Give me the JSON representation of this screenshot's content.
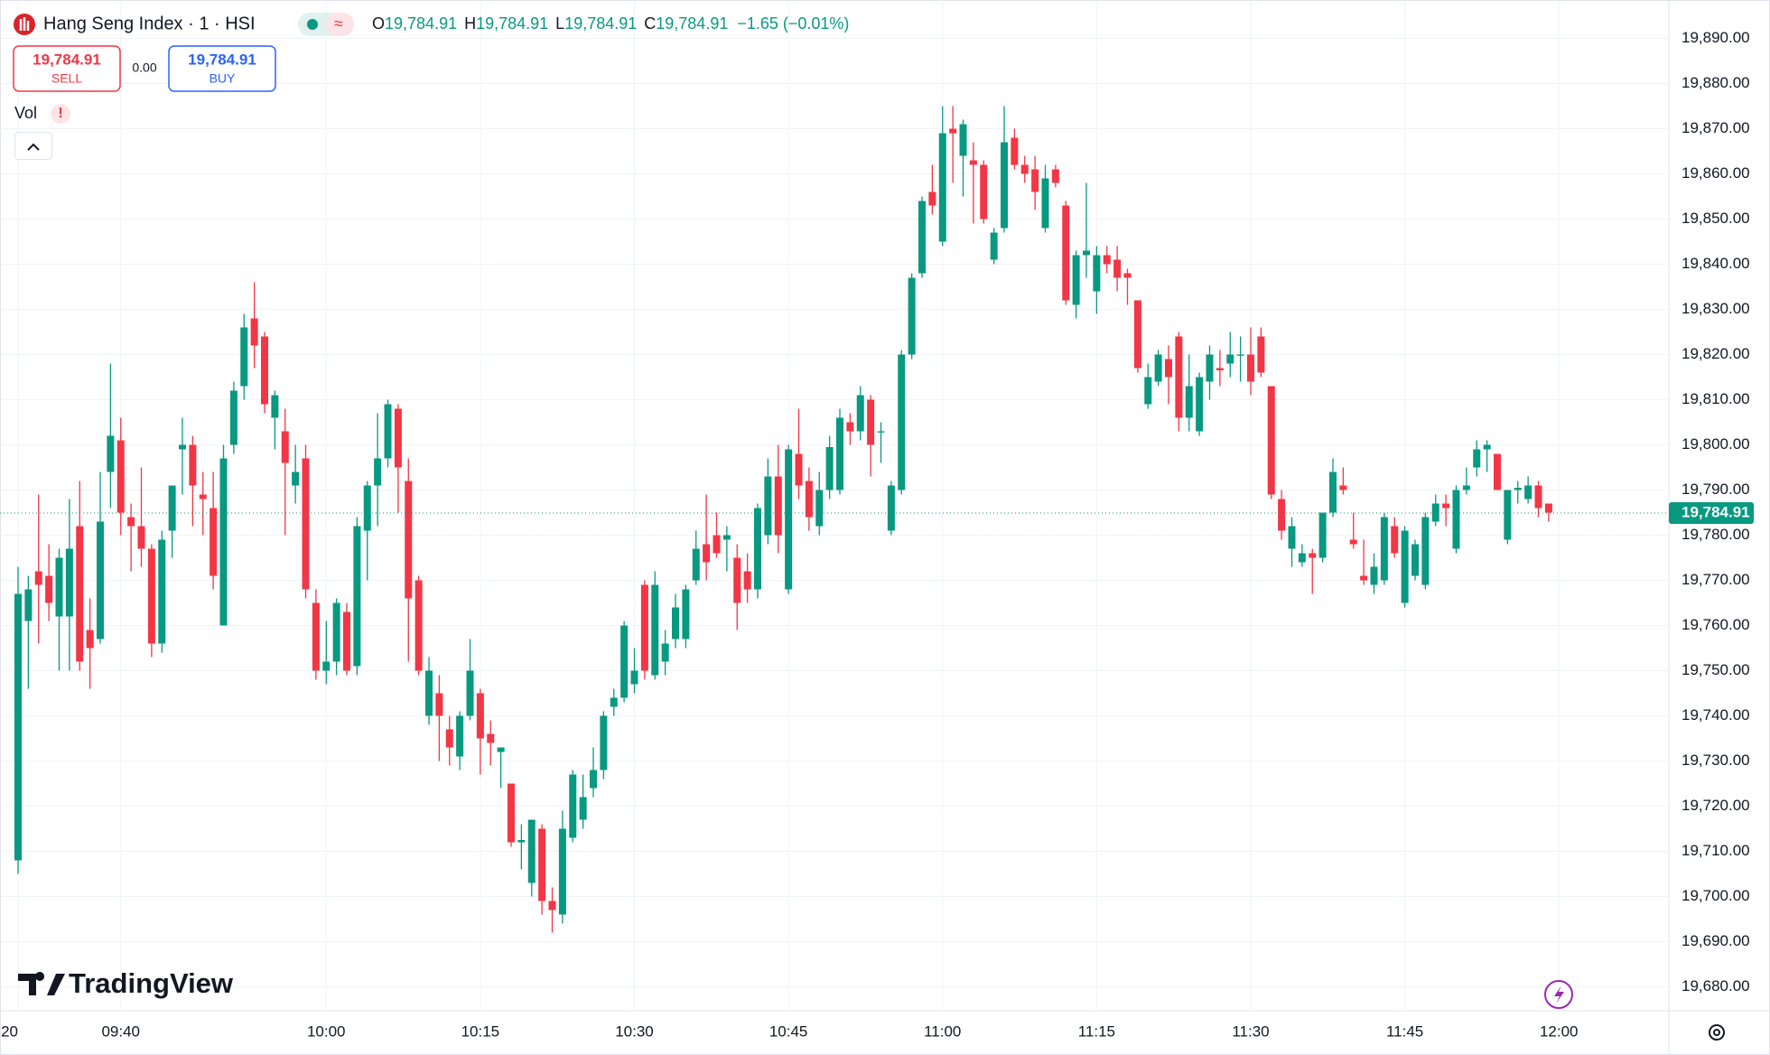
{
  "header": {
    "symbol": "Hang Seng Index · 1 · HSI",
    "ohlc": [
      {
        "key": "O",
        "value": "19,784.91"
      },
      {
        "key": "H",
        "value": "19,784.91"
      },
      {
        "key": "L",
        "value": "19,784.91"
      },
      {
        "key": "C",
        "value": "19,784.91"
      }
    ],
    "change": "−1.65 (−0.01%)",
    "sell": {
      "price": "19,784.91",
      "label": "SELL"
    },
    "spread": "0.00",
    "buy": {
      "price": "19,784.91",
      "label": "BUY"
    },
    "indicator": "Vol",
    "logo": "TradingView"
  },
  "chart_data": {
    "type": "candlestick",
    "x": [
      "09:30",
      "09:31",
      "09:32",
      "09:33",
      "09:34",
      "09:35",
      "09:36",
      "09:37",
      "09:38",
      "09:39",
      "09:40",
      "09:41",
      "09:42",
      "09:43",
      "09:44",
      "09:45",
      "09:46",
      "09:47",
      "09:48",
      "09:49",
      "09:50",
      "09:51",
      "09:52",
      "09:53",
      "09:54",
      "09:55",
      "09:56",
      "09:57",
      "09:58",
      "09:59",
      "10:00",
      "10:01",
      "10:02",
      "10:03",
      "10:04",
      "10:05",
      "10:06",
      "10:07",
      "10:08",
      "10:09",
      "10:10",
      "10:11",
      "10:12",
      "10:13",
      "10:14",
      "10:15",
      "10:16",
      "10:17",
      "10:18",
      "10:19",
      "10:20",
      "10:21",
      "10:22",
      "10:23",
      "10:24",
      "10:25",
      "10:26",
      "10:27",
      "10:28",
      "10:29",
      "10:30",
      "10:31",
      "10:32",
      "10:33",
      "10:34",
      "10:35",
      "10:36",
      "10:37",
      "10:38",
      "10:39",
      "10:40",
      "10:41",
      "10:42",
      "10:43",
      "10:44",
      "10:45",
      "10:46",
      "10:47",
      "10:48",
      "10:49",
      "10:50",
      "10:51",
      "10:52",
      "10:53",
      "10:54",
      "10:55",
      "10:56",
      "10:57",
      "10:58",
      "10:59",
      "11:00",
      "11:01",
      "11:02",
      "11:03",
      "11:04",
      "11:05",
      "11:06",
      "11:07",
      "11:08",
      "11:09",
      "11:10",
      "11:11",
      "11:12",
      "11:13",
      "11:14",
      "11:15",
      "11:16",
      "11:17",
      "11:18",
      "11:19",
      "11:20",
      "11:21",
      "11:22",
      "11:23",
      "11:24",
      "11:25",
      "11:26",
      "11:27",
      "11:28",
      "11:29",
      "11:30",
      "11:31",
      "11:32",
      "11:33",
      "11:34",
      "11:35",
      "11:36",
      "11:37",
      "11:38",
      "11:39",
      "11:40",
      "11:41",
      "11:42",
      "11:43",
      "11:44",
      "11:45",
      "11:46",
      "11:47",
      "11:48",
      "11:49",
      "11:50",
      "11:51",
      "11:52",
      "11:53",
      "11:54",
      "11:55",
      "11:56",
      "11:57",
      "11:58",
      "11:59"
    ],
    "open": [
      19708,
      19761,
      19772,
      19771,
      19762,
      19762,
      19782,
      19759,
      19757,
      19794,
      19801,
      19784,
      19782,
      19777,
      19756,
      19781,
      19799,
      19800,
      19789,
      19786,
      19760,
      19800,
      19813,
      19828,
      19824,
      19806,
      19803,
      19791,
      19797,
      19765,
      19750,
      19752,
      19763,
      19751,
      19781,
      19791,
      19797,
      19808,
      19792,
      19770,
      19740,
      19745,
      19737,
      19731,
      19740,
      19745,
      19736,
      19732,
      19725,
      19712,
      19703,
      19715,
      19699,
      19696,
      19713,
      19717,
      19724,
      19728,
      19742,
      19744,
      19747,
      19769,
      19749,
      19752,
      19757,
      19757,
      19770,
      19778,
      19780,
      19779,
      19775,
      19772,
      19768,
      19780,
      19793,
      19768,
      19798,
      19792,
      19782,
      19790,
      19790,
      19805,
      19803,
      19810,
      19803,
      19781,
      19790,
      19820,
      19838,
      19856,
      19845,
      19870,
      19864,
      19863,
      19862,
      19841,
      19848,
      19868,
      19862,
      19861,
      19848,
      19861,
      19853,
      19831,
      19842,
      19834,
      19842,
      19841,
      19838,
      19832,
      19809,
      19814,
      19819,
      19824,
      19806,
      19803,
      19814,
      19817,
      19818,
      19820,
      19820,
      19824,
      19813,
      19788,
      19777,
      19774,
      19776,
      19775,
      19785,
      19791,
      19779,
      19771,
      19769,
      19770,
      19782,
      19765,
      19771,
      19769,
      19783,
      19787,
      19777,
      19790,
      19795,
      19799,
      19798,
      19779,
      19790,
      19788,
      19791,
      19787
    ],
    "high": [
      19773,
      19771,
      19789,
      19778,
      19777,
      19788,
      19792,
      19766,
      19794,
      19818,
      19806,
      19787,
      19795,
      19778,
      19781,
      19791,
      19806,
      19802,
      19794,
      19794,
      19800,
      19814,
      19829,
      19836,
      19825,
      19812,
      19808,
      19800,
      19800,
      19768,
      19761,
      19766,
      19765,
      19784,
      19792,
      19807,
      19810,
      19809,
      19797,
      19771,
      19753,
      19749,
      19740,
      19741,
      19757,
      19746,
      19739,
      19733,
      19725,
      19716,
      19717,
      19716,
      19702,
      19719,
      19728,
      19727,
      19733,
      19741,
      19746,
      19761,
      19755,
      19770,
      19772,
      19759,
      19767,
      19769,
      19781,
      19789,
      19785,
      19782,
      19778,
      19776,
      19787,
      19797,
      19800,
      19800,
      19808,
      19795,
      19794,
      19802,
      19808,
      19807,
      19813,
      19811,
      19805,
      19792,
      19821,
      19838,
      19855,
      19862,
      19875,
      19875,
      19872,
      19867,
      19863,
      19848,
      19875,
      19870,
      19864,
      19864,
      19862,
      19862,
      19854,
      19843,
      19858,
      19844,
      19844,
      19844,
      19839,
      19832,
      19818,
      19821,
      19822,
      19825,
      19820,
      19816,
      19822,
      19821,
      19825,
      19824,
      19826,
      19826,
      19813,
      19790,
      19784,
      19778,
      19777,
      19785,
      19797,
      19795,
      19785,
      19779,
      19776,
      19785,
      19784,
      19782,
      19779,
      19785,
      19789,
      19789,
      19791,
      19795,
      19801,
      19801,
      19798,
      19790,
      19792,
      19793,
      19792,
      19787
    ],
    "low": [
      19705,
      19746,
      19756,
      19761,
      19750,
      19750,
      19750,
      19746,
      19756,
      19786,
      19780,
      19772,
      19773,
      19753,
      19754,
      19775,
      19789,
      19782,
      19780,
      19768,
      19760,
      19798,
      19810,
      19817,
      19807,
      19799,
      19780,
      19787,
      19766,
      19748,
      19747,
      19749,
      19749,
      19749,
      19770,
      19782,
      19795,
      19785,
      19752,
      19749,
      19738,
      19730,
      19729,
      19728,
      19739,
      19727,
      19729,
      19724,
      19711,
      19706,
      19700,
      19696,
      19692,
      19694,
      19712,
      19715,
      19722,
      19726,
      19740,
      19743,
      19745,
      19748,
      19748,
      19749,
      19755,
      19755,
      19769,
      19770,
      19775,
      19772,
      19759,
      19765,
      19766,
      19778,
      19776,
      19767,
      19788,
      19781,
      19780,
      19788,
      19789,
      19800,
      19801,
      19793,
      19796,
      19780,
      19789,
      19819,
      19837,
      19851,
      19844,
      19858,
      19855,
      19849,
      19849,
      19840,
      19847,
      19861,
      19858,
      19852,
      19847,
      19857,
      19831,
      19828,
      19837,
      19829,
      19838,
      19834,
      19831,
      19816,
      19808,
      19813,
      19809,
      19803,
      19803,
      19802,
      19810,
      19813,
      19815,
      19814,
      19811,
      19815,
      19788,
      19779,
      19773,
      19773,
      19767,
      19774,
      19784,
      19789,
      19777,
      19769,
      19767,
      19769,
      19775,
      19764,
      19770,
      19768,
      19782,
      19782,
      19776,
      19789,
      19793,
      19794,
      19790,
      19778,
      19787,
      19787,
      19784,
      19783
    ],
    "close": [
      19767,
      19768,
      19769,
      19765,
      19775,
      19777,
      19752,
      19755,
      19783,
      19802,
      19785,
      19782,
      19777,
      19756,
      19779,
      19791,
      19800,
      19791,
      19788,
      19771,
      19797,
      19812,
      19826,
      19822,
      19809,
      19811,
      19796,
      19794,
      19768,
      19750,
      19752,
      19765,
      19750,
      19782,
      19791,
      19797,
      19809,
      19795,
      19766,
      19750,
      19750,
      19740,
      19733,
      19740,
      19750,
      19735,
      19734,
      19733,
      19712,
      19712.5,
      19717,
      19699,
      19697,
      19715,
      19727,
      19722,
      19728,
      19740,
      19744,
      19760,
      19750,
      19750,
      19769,
      19756,
      19764,
      19768,
      19777,
      19774,
      19776,
      19780,
      19765,
      19768,
      19786,
      19793,
      19780,
      19799,
      19791,
      19784,
      19790,
      19799.5,
      19806,
      19803,
      19811,
      19800,
      19803,
      19791,
      19820,
      19837,
      19854,
      19853,
      19869,
      19869,
      19871,
      19862,
      19850,
      19847,
      19867,
      19862,
      19860,
      19856,
      19859,
      19858,
      19832,
      19842,
      19843,
      19842,
      19840,
      19837,
      19837,
      19817,
      19815,
      19820,
      19815,
      19806,
      19813,
      19815,
      19820,
      19816.5,
      19820,
      19820,
      19814,
      19816,
      19789,
      19781,
      19782,
      19776,
      19775,
      19785,
      19794,
      19790,
      19778,
      19770,
      19773,
      19784,
      19776,
      19781,
      19778,
      19784,
      19787,
      19786,
      19790,
      19791,
      19799,
      19800,
      19790,
      19790,
      19790.5,
      19791,
      19786,
      19785
    ],
    "up_color": "#089981",
    "down_color": "#f23645",
    "ylim": [
      19674.7,
      19898.5
    ],
    "yticks": [
      {
        "value": 19680,
        "label": "19,680.00"
      },
      {
        "value": 19690,
        "label": "19,690.00"
      },
      {
        "value": 19700,
        "label": "19,700.00"
      },
      {
        "value": 19710,
        "label": "19,710.00"
      },
      {
        "value": 19720,
        "label": "19,720.00"
      },
      {
        "value": 19730,
        "label": "19,730.00"
      },
      {
        "value": 19740,
        "label": "19,740.00"
      },
      {
        "value": 19750,
        "label": "19,750.00"
      },
      {
        "value": 19760,
        "label": "19,760.00"
      },
      {
        "value": 19770,
        "label": "19,770.00"
      },
      {
        "value": 19780,
        "label": "19,780.00"
      },
      {
        "value": 19790,
        "label": "19,790.00"
      },
      {
        "value": 19800,
        "label": "19,800.00"
      },
      {
        "value": 19810,
        "label": "19,810.00"
      },
      {
        "value": 19820,
        "label": "19,820.00"
      },
      {
        "value": 19830,
        "label": "19,830.00"
      },
      {
        "value": 19840,
        "label": "19,840.00"
      },
      {
        "value": 19850,
        "label": "19,850.00"
      },
      {
        "value": 19860,
        "label": "19,860.00"
      },
      {
        "value": 19870,
        "label": "19,870.00"
      },
      {
        "value": 19880,
        "label": "19,880.00"
      },
      {
        "value": 19890,
        "label": "19,890.00"
      }
    ],
    "xticks": [
      {
        "value": "09:30",
        "label": "20"
      },
      "09:40",
      "10:00",
      "10:15",
      "10:30",
      "10:45",
      "11:00",
      "11:15",
      "11:30",
      "11:45",
      "12:00"
    ],
    "last_price": {
      "value": 19784.91,
      "label": "19,784.91"
    },
    "grid": true
  }
}
